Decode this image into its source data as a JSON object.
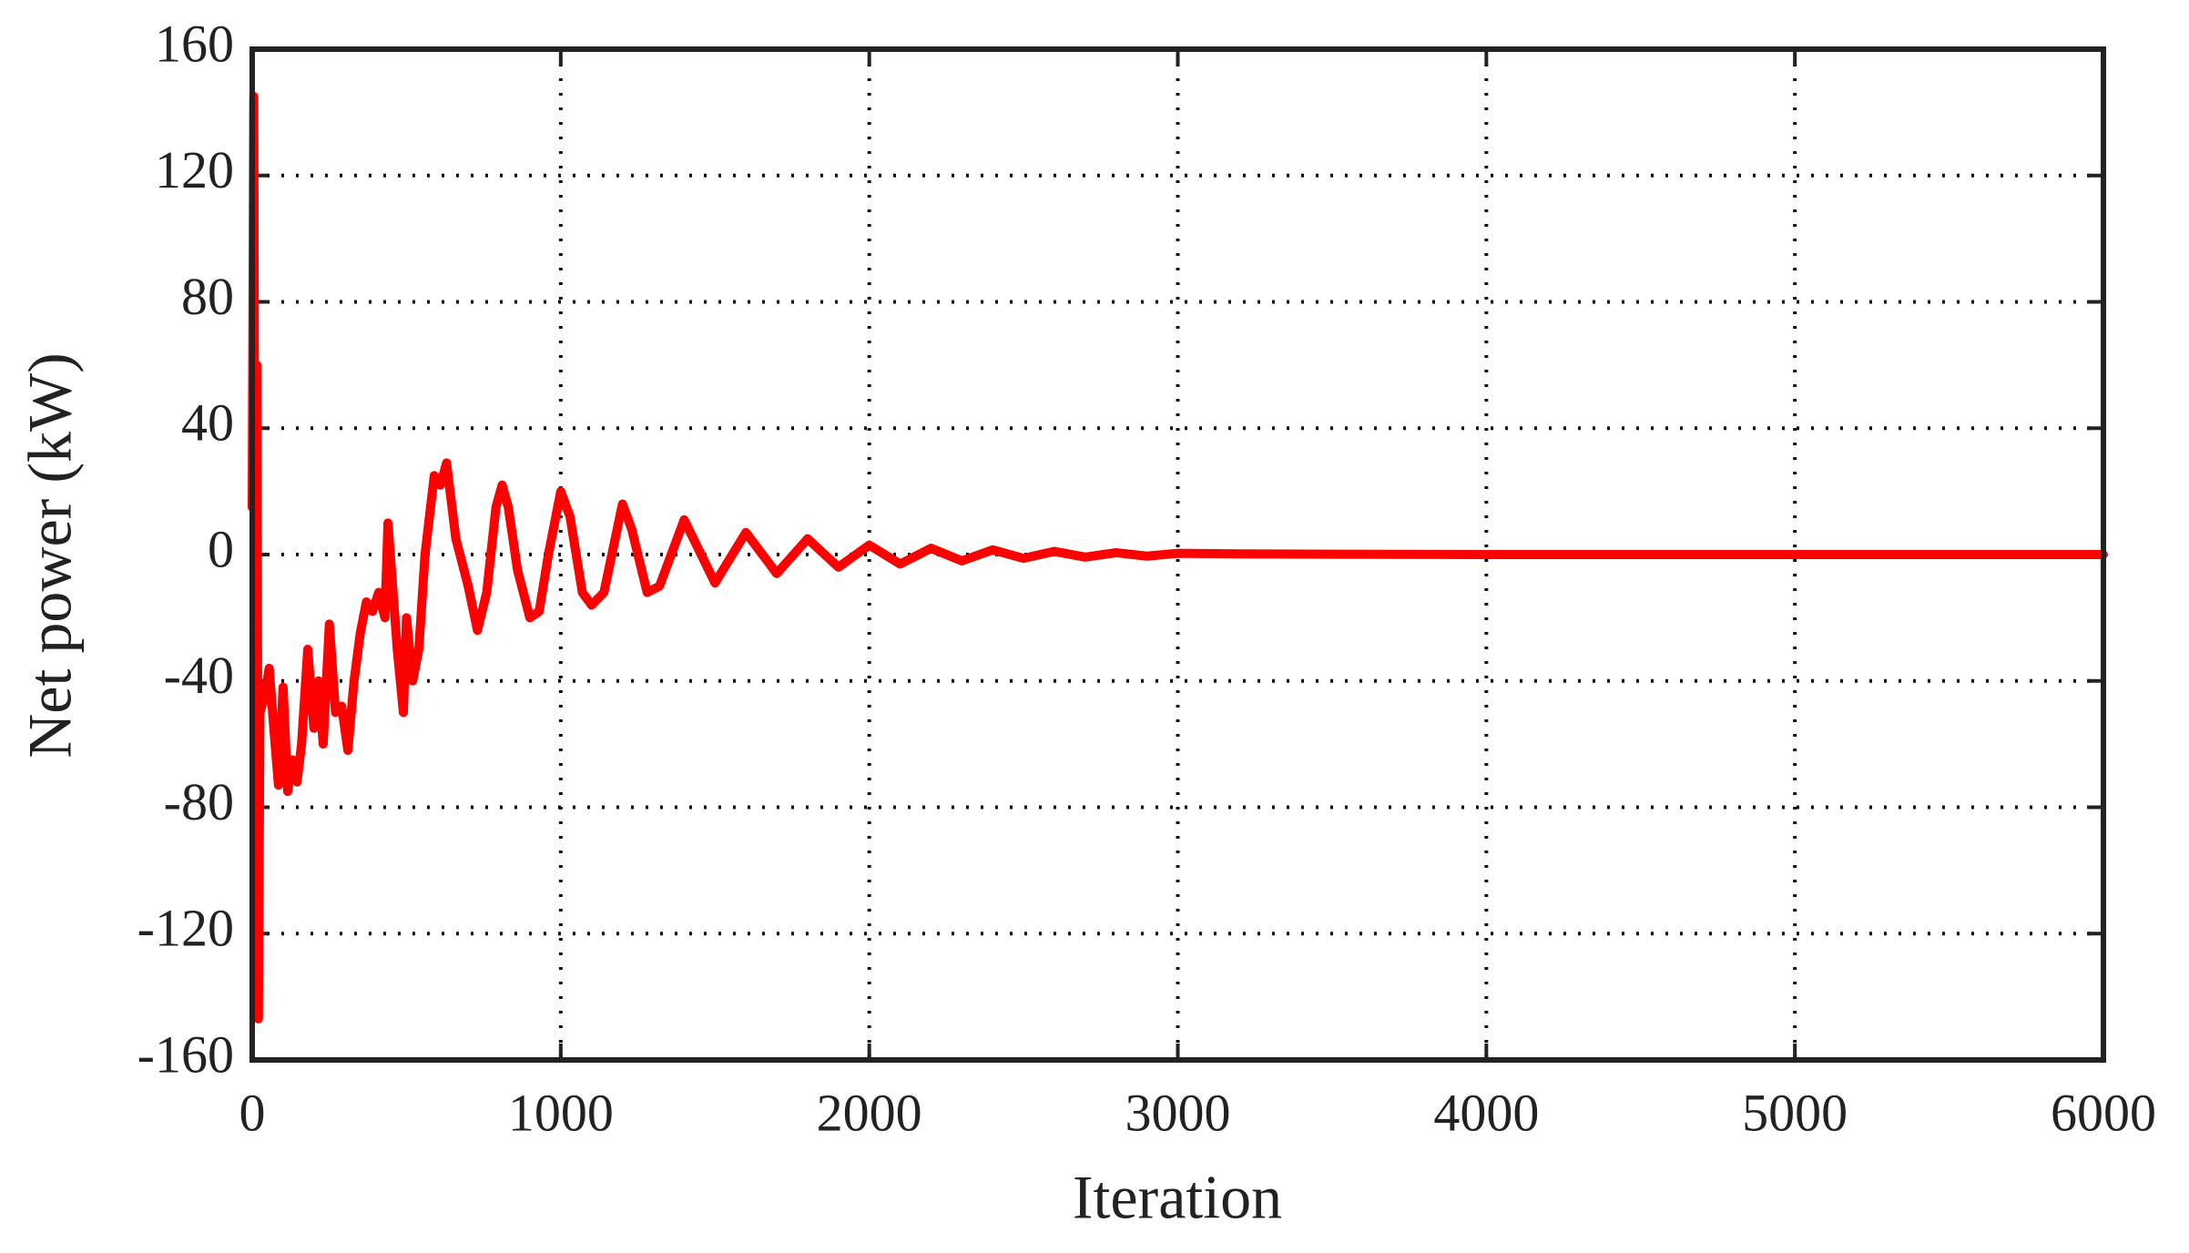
{
  "chart_data": {
    "type": "line",
    "x_label": "Iteration",
    "y_label": "Net power (kW)",
    "xlim": [
      0,
      6000
    ],
    "xticks": [
      0,
      1000,
      2000,
      3000,
      4000,
      5000,
      6000
    ],
    "ylim": [
      -160,
      160
    ],
    "yticks": [
      -160,
      -120,
      -80,
      -40,
      0,
      40,
      80,
      120,
      160
    ],
    "grid": true,
    "x": [
      0,
      5,
      10,
      15,
      20,
      25,
      40,
      55,
      70,
      85,
      100,
      115,
      130,
      145,
      160,
      180,
      200,
      215,
      230,
      250,
      270,
      290,
      310,
      330,
      350,
      370,
      390,
      410,
      430,
      440,
      455,
      470,
      490,
      500,
      520,
      540,
      560,
      590,
      610,
      630,
      660,
      700,
      730,
      760,
      790,
      810,
      830,
      860,
      900,
      930,
      960,
      1000,
      1030,
      1070,
      1100,
      1140,
      1200,
      1230,
      1280,
      1320,
      1400,
      1440,
      1500,
      1600,
      1700,
      1800,
      1900,
      2000,
      2100,
      2200,
      2300,
      2400,
      2500,
      2600,
      2700,
      2800,
      2900,
      3000,
      3200,
      3500,
      4000,
      6000
    ],
    "series": [
      {
        "color": "#ff0000",
        "values": [
          15,
          145,
          -90,
          60,
          -147,
          -50,
          -45,
          -36,
          -55,
          -73,
          -42,
          -75,
          -65,
          -72,
          -60,
          -30,
          -55,
          -40,
          -60,
          -22,
          -50,
          -48,
          -62,
          -40,
          -25,
          -15,
          -18,
          -12,
          -20,
          10,
          -10,
          -30,
          -50,
          -20,
          -40,
          -30,
          0,
          25,
          22,
          29,
          5,
          -10,
          -24,
          -12,
          15,
          22,
          15,
          -5,
          -20,
          -18,
          0,
          20,
          12,
          -12,
          -16,
          -12,
          16,
          8,
          -12,
          -10,
          11,
          3,
          -9,
          7,
          -6,
          5,
          -4,
          3,
          -3,
          2,
          -2,
          1.5,
          -1.2,
          1,
          -0.8,
          0.6,
          -0.5,
          0.4,
          0.2,
          0.1,
          0,
          0
        ]
      }
    ]
  }
}
